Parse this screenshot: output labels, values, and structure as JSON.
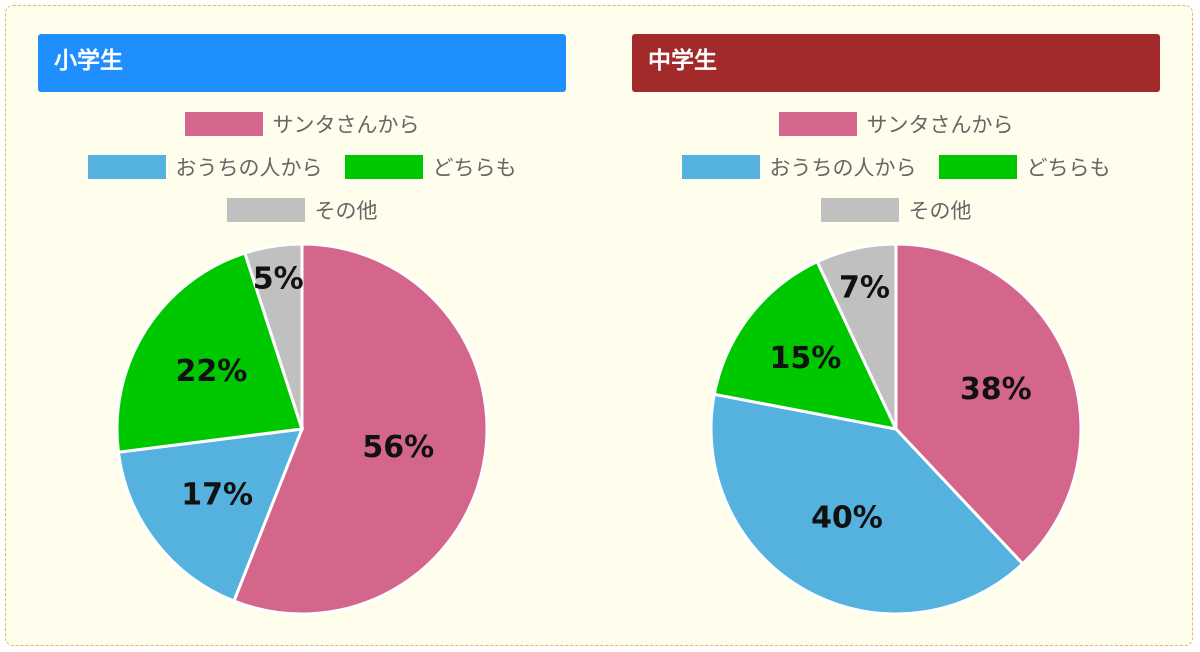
{
  "colors": {
    "santa": "#d5668b",
    "family": "#55b1de",
    "both": "#00c800",
    "other": "#c0c0c0",
    "elementary_header": "#1f8fff",
    "junior_header": "#a32a2a",
    "background": "#fffdec",
    "border": "#e8b46a"
  },
  "legend": {
    "santa": "サンタさんから",
    "family": "おうちの人から",
    "both": "どちらも",
    "other": "その他"
  },
  "chart_data": [
    {
      "type": "pie",
      "title": "小学生",
      "header_color": "#1f8fff",
      "categories": [
        "サンタさんから",
        "おうちの人から",
        "どちらも",
        "その他"
      ],
      "values": [
        56,
        17,
        22,
        5
      ],
      "labels": [
        "56%",
        "17%",
        "22%",
        "5%"
      ],
      "colors": [
        "#d5668b",
        "#55b1de",
        "#00c800",
        "#c0c0c0"
      ],
      "legend_position": "top"
    },
    {
      "type": "pie",
      "title": "中学生",
      "header_color": "#a32a2a",
      "categories": [
        "サンタさんから",
        "おうちの人から",
        "どちらも",
        "その他"
      ],
      "values": [
        38,
        40,
        15,
        7
      ],
      "labels": [
        "38%",
        "40%",
        "15%",
        "7%"
      ],
      "colors": [
        "#d5668b",
        "#55b1de",
        "#00c800",
        "#c0c0c0"
      ],
      "legend_position": "top"
    }
  ]
}
